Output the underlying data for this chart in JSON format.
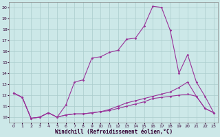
{
  "xlabel": "Windchill (Refroidissement éolien,°C)",
  "background_color": "#cce8e8",
  "line_color": "#993399",
  "grid_color": "#aacccc",
  "xlim": [
    -0.5,
    23.5
  ],
  "ylim": [
    9.5,
    20.5
  ],
  "xticks": [
    0,
    1,
    2,
    3,
    4,
    5,
    6,
    7,
    8,
    9,
    10,
    11,
    12,
    13,
    14,
    15,
    16,
    17,
    18,
    19,
    20,
    21,
    22,
    23
  ],
  "yticks": [
    10,
    11,
    12,
    13,
    14,
    15,
    16,
    17,
    18,
    19,
    20
  ],
  "series": [
    {
      "x": [
        0,
        1,
        2,
        3,
        4,
        5,
        6,
        7,
        8,
        9,
        10,
        11,
        12,
        13,
        14,
        15,
        16,
        17,
        18,
        19,
        20,
        21,
        22,
        23
      ],
      "y": [
        12.2,
        11.8,
        9.9,
        10.0,
        10.4,
        10.0,
        11.1,
        13.2,
        13.4,
        15.4,
        15.5,
        15.9,
        16.1,
        17.1,
        17.2,
        18.3,
        20.1,
        20.0,
        17.9,
        14.0,
        15.7,
        13.2,
        11.9,
        10.4
      ]
    },
    {
      "x": [
        0,
        1,
        2,
        3,
        4,
        5,
        6,
        7,
        8,
        9,
        10,
        11,
        12,
        13,
        14,
        15,
        16,
        17,
        18,
        19,
        20,
        21,
        22,
        23
      ],
      "y": [
        12.2,
        11.8,
        9.9,
        10.0,
        10.4,
        10.0,
        10.2,
        10.3,
        10.3,
        10.4,
        10.5,
        10.6,
        10.8,
        11.0,
        11.2,
        11.4,
        11.7,
        11.8,
        11.9,
        12.0,
        12.1,
        11.9,
        10.8,
        10.4
      ]
    },
    {
      "x": [
        0,
        1,
        2,
        3,
        4,
        5,
        6,
        7,
        8,
        9,
        10,
        11,
        12,
        13,
        14,
        15,
        16,
        17,
        18,
        19,
        20,
        21,
        22,
        23
      ],
      "y": [
        12.2,
        11.8,
        9.9,
        10.0,
        10.4,
        10.0,
        10.2,
        10.3,
        10.3,
        10.4,
        10.5,
        10.7,
        11.0,
        11.3,
        11.5,
        11.7,
        11.9,
        12.1,
        12.3,
        12.7,
        13.2,
        11.9,
        10.8,
        10.4
      ]
    }
  ],
  "tick_fontsize": 4.5,
  "xlabel_fontsize": 5.5
}
